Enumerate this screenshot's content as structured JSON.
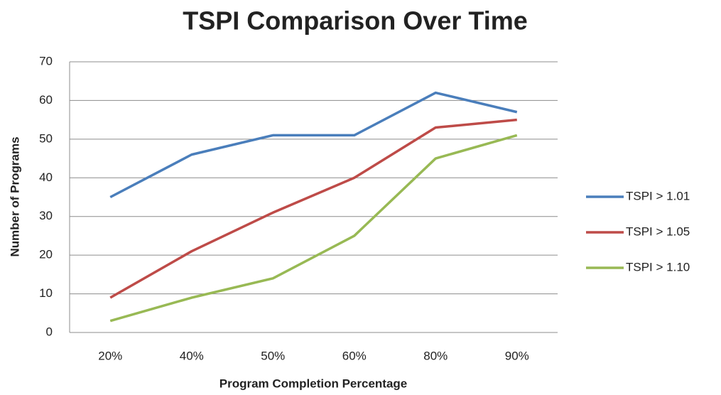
{
  "chart_data": {
    "type": "line",
    "title": "TSPI Comparison Over Time",
    "x_label": "Program Completion Percentage",
    "y_label": "Number of Programs",
    "categories": [
      "20%",
      "40%",
      "50%",
      "60%",
      "80%",
      "90%"
    ],
    "series": [
      {
        "name": "TSPI > 1.01",
        "color": "#4a7ebb",
        "values": [
          35,
          46,
          51,
          51,
          62,
          57
        ]
      },
      {
        "name": "TSPI > 1.05",
        "color": "#be4b48",
        "values": [
          9,
          21,
          31,
          40,
          53,
          55
        ]
      },
      {
        "name": "TSPI > 1.10",
        "color": "#98b954",
        "values": [
          3,
          9,
          14,
          25,
          45,
          51
        ]
      }
    ],
    "ylim": [
      0,
      70
    ],
    "yticks": [
      0,
      10,
      20,
      30,
      40,
      50,
      60,
      70
    ],
    "grid": true,
    "legend": "right"
  }
}
